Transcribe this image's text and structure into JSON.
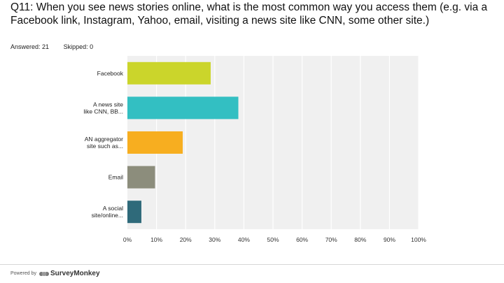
{
  "question": {
    "text": "Q11: When you see news stories online, what is the most common way you access them (e.g. via a Facebook link, Instagram, Yahoo, email, visiting a news site like CNN, some other site.)"
  },
  "meta": {
    "answered": "Answered: 21",
    "skipped": "Skipped: 0"
  },
  "footer": {
    "powered_by": "Powered by",
    "brand": "SurveyMonkey"
  },
  "chart_data": {
    "type": "bar",
    "orientation": "horizontal",
    "categories": [
      [
        "Facebook"
      ],
      [
        "A news site",
        "like CNN, BB..."
      ],
      [
        "AN aggregator",
        "site such as..."
      ],
      [
        "Email"
      ],
      [
        "A social",
        "site/online..."
      ]
    ],
    "values": [
      28.6,
      38.1,
      19.0,
      9.5,
      4.8
    ],
    "colors": [
      "#cbd52b",
      "#33bfc2",
      "#f7ae20",
      "#8c8d7c",
      "#2f6a7a"
    ],
    "xlim": [
      0,
      100
    ],
    "xticks": [
      0,
      10,
      20,
      30,
      40,
      50,
      60,
      70,
      80,
      90,
      100
    ],
    "xtick_labels": [
      "0%",
      "10%",
      "20%",
      "30%",
      "40%",
      "50%",
      "60%",
      "70%",
      "80%",
      "90%",
      "100%"
    ],
    "grid": true,
    "plot_background": "#f0f0f0"
  }
}
